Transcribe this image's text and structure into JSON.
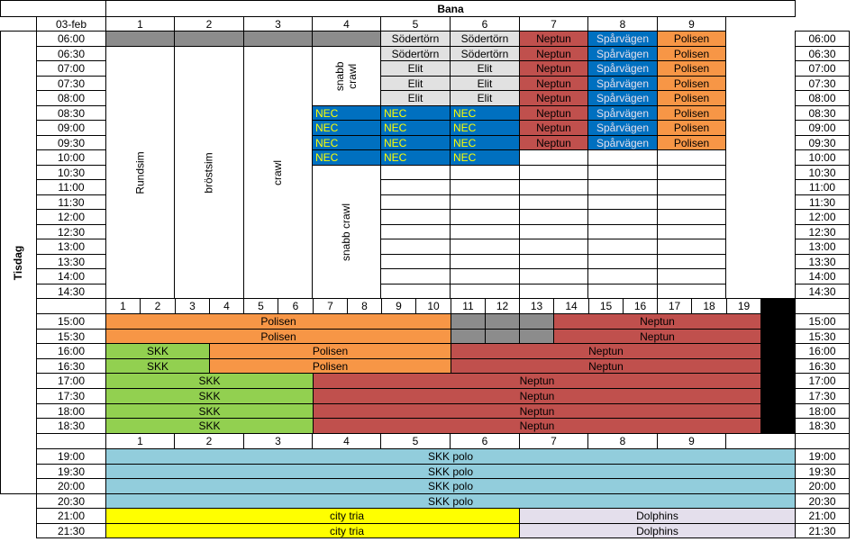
{
  "header": {
    "date": "03-feb",
    "bana_label": "Bana",
    "day": "Tisdag"
  },
  "lanes_upper": [
    "1",
    "2",
    "3",
    "4",
    "5",
    "6",
    "7",
    "8",
    "9"
  ],
  "lanes_middle": [
    "1",
    "2",
    "3",
    "4",
    "5",
    "6",
    "7",
    "8",
    "9",
    "10",
    "11",
    "12",
    "13",
    "14",
    "15",
    "16",
    "17",
    "18",
    "19"
  ],
  "lanes_lower": [
    "1",
    "2",
    "3",
    "4",
    "5",
    "6",
    "7",
    "8",
    "9"
  ],
  "times": [
    "06:00",
    "06:30",
    "07:00",
    "07:30",
    "08:00",
    "08:30",
    "09:00",
    "09:30",
    "10:00",
    "10:30",
    "11:00",
    "11:30",
    "12:00",
    "12:30",
    "13:00",
    "13:30",
    "14:00",
    "14:30",
    "15:00",
    "15:30",
    "16:00",
    "16:30",
    "17:00",
    "17:30",
    "18:00",
    "18:30",
    "19:00",
    "19:30",
    "20:00",
    "20:30",
    "21:00",
    "21:30"
  ],
  "vertical_labels": {
    "rundsim": "Rundsim",
    "brostsim": "bröstsim",
    "crawl": "crawl",
    "snabb_crawl_top": "snabb crawl",
    "snabb_crawl": "snabb crawl"
  },
  "clubs": {
    "sodertorn": "Södertörn",
    "elit": "Elit",
    "neptun": "Neptun",
    "sparvagen": "Spårvägen",
    "polisen": "Polisen",
    "nec": "NEC",
    "skk": "SKK",
    "skk_polo": "SKK polo",
    "city_tria": "city tria",
    "dolphins": "Dolphins"
  },
  "colors": {
    "grey": "#8c8c8c",
    "light_grey": "#e1e1e1",
    "neptun_red": "#c0504d",
    "blue": "#0070c0",
    "polisen_orange": "#f79646",
    "skk_green": "#92d050",
    "polo_teal": "#92cddc",
    "city_tria_yellow": "#ffff00",
    "dolphins_lavender": "#e4dfec"
  }
}
